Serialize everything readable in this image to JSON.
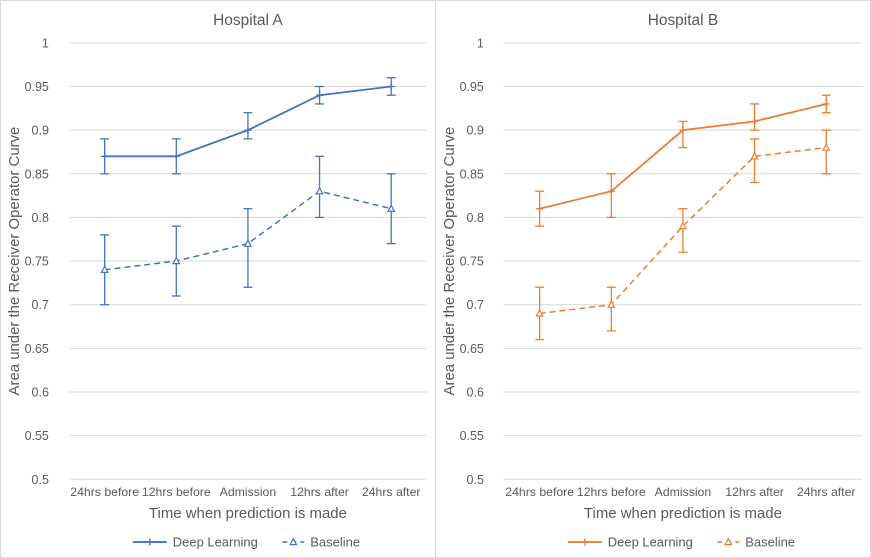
{
  "colors": {
    "hospital_a_accent": "#4472C4",
    "hospital_b_accent": "#ED7D31",
    "grid": "#D9D9D9",
    "text": "#595959",
    "panel_border": "#D9D9D9",
    "background": "#FFFFFF"
  },
  "chart_data": [
    {
      "type": "line",
      "title": "Hospital A",
      "color": "#4472C4",
      "categories": [
        "24hrs before",
        "12hrs before",
        "Admission",
        "12hrs after",
        "24hrs after"
      ],
      "xlabel": "Time when prediction is made",
      "ylabel": "Area under the Receiver  Operator Curve",
      "ylim": [
        0.5,
        1.0
      ],
      "ytick_step": 0.05,
      "ytick_labels": [
        "1",
        "0.95",
        "0.9",
        "0.85",
        "0.8",
        "0.75",
        "0.7",
        "0.65",
        "0.6",
        "0.55",
        "0.5"
      ],
      "grid": true,
      "legend_position": "bottom",
      "series": [
        {
          "name": "Deep Learning",
          "line_style": "solid",
          "marker": "plus",
          "values": [
            0.87,
            0.87,
            0.9,
            0.94,
            0.95
          ],
          "err_low": [
            0.85,
            0.85,
            0.89,
            0.93,
            0.94
          ],
          "err_high": [
            0.89,
            0.89,
            0.92,
            0.95,
            0.96
          ]
        },
        {
          "name": "Baseline",
          "line_style": "dashed",
          "marker": "triangle",
          "values": [
            0.74,
            0.75,
            0.77,
            0.83,
            0.81
          ],
          "err_low": [
            0.7,
            0.71,
            0.72,
            0.8,
            0.77
          ],
          "err_high": [
            0.78,
            0.79,
            0.81,
            0.87,
            0.85
          ]
        }
      ]
    },
    {
      "type": "line",
      "title": "Hospital B",
      "color": "#ED7D31",
      "categories": [
        "24hrs before",
        "12hrs before",
        "Admission",
        "12hrs after",
        "24hrs after"
      ],
      "xlabel": "Time when prediction is made",
      "ylabel": "Area under the Receiver  Operator Curve",
      "ylim": [
        0.5,
        1.0
      ],
      "ytick_step": 0.05,
      "ytick_labels": [
        "1",
        "0.95",
        "0.9",
        "0.85",
        "0.8",
        "0.75",
        "0.7",
        "0.65",
        "0.6",
        "0.55",
        "0.5"
      ],
      "grid": true,
      "legend_position": "bottom",
      "series": [
        {
          "name": "Deep Learning",
          "line_style": "solid",
          "marker": "plus",
          "values": [
            0.81,
            0.83,
            0.9,
            0.91,
            0.93
          ],
          "err_low": [
            0.79,
            0.8,
            0.88,
            0.9,
            0.92
          ],
          "err_high": [
            0.83,
            0.85,
            0.91,
            0.93,
            0.94
          ]
        },
        {
          "name": "Baseline",
          "line_style": "dashed",
          "marker": "triangle",
          "values": [
            0.69,
            0.7,
            0.79,
            0.87,
            0.88
          ],
          "err_low": [
            0.66,
            0.67,
            0.76,
            0.84,
            0.85
          ],
          "err_high": [
            0.72,
            0.72,
            0.81,
            0.89,
            0.9
          ]
        }
      ]
    }
  ]
}
